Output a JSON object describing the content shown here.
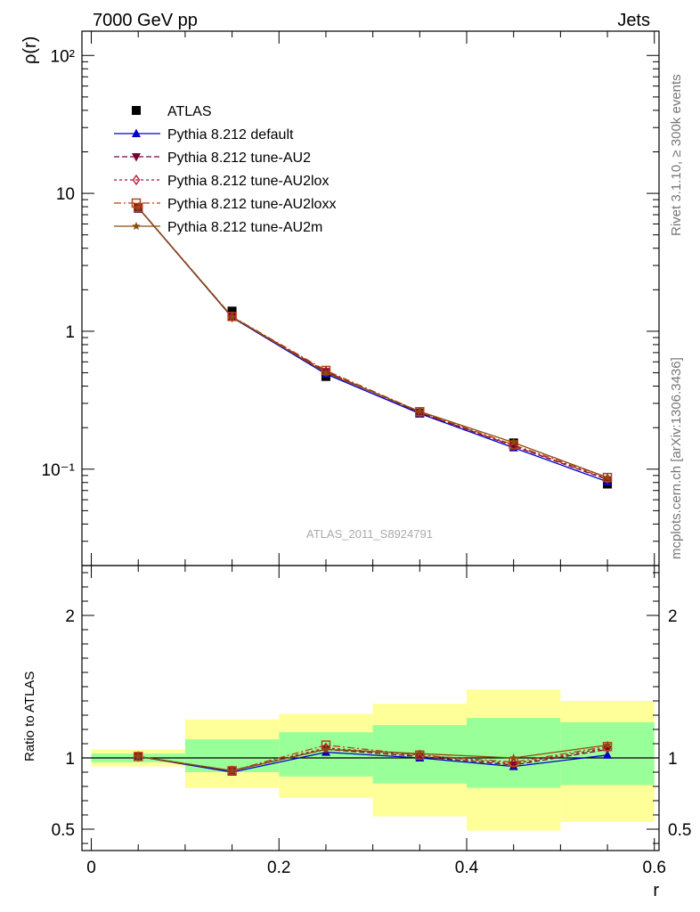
{
  "header": {
    "left": "7000 GeV pp",
    "right": "Jets"
  },
  "side": {
    "rivet": "Rivet 3.1.10, ≥ 300k events",
    "mcplots": "mcplots.cern.ch [arXiv:1306.3436]"
  },
  "watermark": "ATLAS_2011_S8924791",
  "colors": {
    "atlas": "#000000",
    "default": "#0000cc",
    "au2": "#7a0033",
    "au2lox": "#aa1133",
    "au2loxx": "#b34415",
    "au2m": "#8b4c0a",
    "band_inner": "#99ff99",
    "band_outer": "#ffff99"
  },
  "chart_data": [
    {
      "type": "line",
      "panel": "main",
      "ylabel": "ρ(r)",
      "yscale": "log",
      "ylim": [
        0.02,
        150
      ],
      "xlim": [
        -0.01,
        0.605
      ],
      "ytick_labels": [
        "10⁻¹",
        "1",
        "10",
        "10²"
      ],
      "x": [
        0.05,
        0.15,
        0.25,
        0.35,
        0.45,
        0.55
      ],
      "series": [
        {
          "name": "ATLAS",
          "key": "atlas",
          "marker": "square",
          "values": [
            7.8,
            1.4,
            0.47,
            0.255,
            0.155,
            0.078
          ]
        },
        {
          "name": "Pythia 8.212 default",
          "key": "default",
          "marker": "triangle-up",
          "values": [
            7.85,
            1.26,
            0.49,
            0.253,
            0.143,
            0.081
          ]
        },
        {
          "name": "Pythia 8.212 tune-AU2",
          "key": "au2",
          "marker": "triangle-down",
          "values": [
            7.87,
            1.27,
            0.51,
            0.257,
            0.147,
            0.084
          ]
        },
        {
          "name": "Pythia 8.212 tune-AU2lox",
          "key": "au2lox",
          "marker": "diamond-open",
          "values": [
            7.87,
            1.27,
            0.51,
            0.258,
            0.148,
            0.085
          ]
        },
        {
          "name": "Pythia 8.212 tune-AU2loxx",
          "key": "au2loxx",
          "marker": "square-open",
          "values": [
            7.9,
            1.28,
            0.52,
            0.261,
            0.15,
            0.087
          ]
        },
        {
          "name": "Pythia 8.212 tune-AU2m",
          "key": "au2m",
          "marker": "star",
          "values": [
            7.88,
            1.27,
            0.5,
            0.262,
            0.156,
            0.087
          ]
        }
      ]
    },
    {
      "type": "line",
      "panel": "ratio",
      "ylabel": "Ratio to ATLAS",
      "xlabel": "r",
      "ylim": [
        0.35,
        2.35
      ],
      "xlim": [
        -0.01,
        0.605
      ],
      "xticks": [
        0,
        0.2,
        0.4,
        0.6
      ],
      "xtick_labels": [
        "0",
        "0.2",
        "0.4",
        "0.6"
      ],
      "yticks": [
        0.5,
        1,
        2
      ],
      "ytick_labels": [
        "0.5",
        "1",
        "2"
      ],
      "x": [
        0.05,
        0.15,
        0.25,
        0.35,
        0.45,
        0.55
      ],
      "bins": [
        [
          0,
          0.1
        ],
        [
          0.1,
          0.2
        ],
        [
          0.2,
          0.3
        ],
        [
          0.3,
          0.4
        ],
        [
          0.4,
          0.5
        ],
        [
          0.5,
          0.6
        ]
      ],
      "band_inner": [
        [
          0.97,
          1.03
        ],
        [
          0.9,
          1.13
        ],
        [
          0.87,
          1.18
        ],
        [
          0.82,
          1.23
        ],
        [
          0.79,
          1.28
        ],
        [
          0.81,
          1.25
        ]
      ],
      "band_outer": [
        [
          0.94,
          1.06
        ],
        [
          0.79,
          1.27
        ],
        [
          0.72,
          1.31
        ],
        [
          0.59,
          1.38
        ],
        [
          0.49,
          1.48
        ],
        [
          0.55,
          1.4
        ]
      ],
      "series": [
        {
          "name": "Pythia 8.212 default",
          "key": "default",
          "marker": "triangle-up",
          "values": [
            1.01,
            0.9,
            1.04,
            1.0,
            0.94,
            1.02
          ]
        },
        {
          "name": "Pythia 8.212 tune-AU2",
          "key": "au2",
          "marker": "triangle-down",
          "values": [
            1.01,
            0.91,
            1.06,
            1.01,
            0.95,
            1.06
          ]
        },
        {
          "name": "Pythia 8.212 tune-AU2lox",
          "key": "au2lox",
          "marker": "diamond-open",
          "values": [
            1.01,
            0.91,
            1.07,
            1.02,
            0.96,
            1.07
          ]
        },
        {
          "name": "Pythia 8.212 tune-AU2loxx",
          "key": "au2loxx",
          "marker": "square-open",
          "values": [
            1.01,
            0.91,
            1.09,
            1.02,
            0.97,
            1.08
          ]
        },
        {
          "name": "Pythia 8.212 tune-AU2m",
          "key": "au2m",
          "marker": "star",
          "values": [
            1.01,
            0.91,
            1.06,
            1.03,
            1.0,
            1.09
          ]
        }
      ]
    }
  ]
}
